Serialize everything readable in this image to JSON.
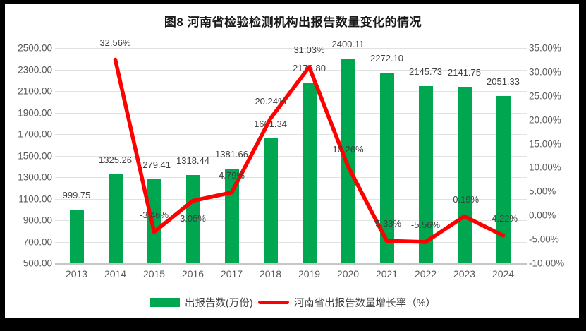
{
  "title": "图8  河南省检验检测机构出报告数量变化的情况",
  "chart_data": {
    "type": "combo (bar + line, dual axis)",
    "categories": [
      "2013",
      "2014",
      "2015",
      "2016",
      "2017",
      "2018",
      "2019",
      "2020",
      "2021",
      "2022",
      "2023",
      "2024"
    ],
    "series": [
      {
        "name": "出报告数(万份)",
        "type": "bar",
        "axis": "left",
        "color": "#00a750",
        "values": [
          999.75,
          1325.26,
          1279.41,
          1318.44,
          1381.66,
          1661.34,
          2176.8,
          2400.11,
          2272.1,
          2145.73,
          2141.75,
          2051.33
        ],
        "labels": [
          "999.75",
          "1325.26",
          "1279.41",
          "1318.44",
          "1381.66",
          "1661.34",
          "2176.80",
          "2400.11",
          "2272.10",
          "2145.73",
          "2141.75",
          "2051.33"
        ]
      },
      {
        "name": "河南省出报告数量增长率（%）",
        "type": "line",
        "axis": "right",
        "color": "#fe0000",
        "values": [
          null,
          32.56,
          -3.46,
          3.05,
          4.79,
          20.24,
          31.03,
          10.26,
          -5.33,
          -5.56,
          -0.19,
          -4.22
        ],
        "labels": [
          "",
          "32.56%",
          "-3.46%",
          "3.05%",
          "4.79%",
          "20.24%",
          "31.03%",
          "10.26%",
          "-5.33%",
          "-5.56%",
          "-0.19%",
          "-4.22%"
        ]
      }
    ],
    "left_axis": {
      "min": 500,
      "max": 2500,
      "step": 200,
      "tick_labels": [
        "2500.00",
        "2300.00",
        "2100.00",
        "1900.00",
        "1700.00",
        "1500.00",
        "1300.00",
        "1100.00",
        "900.00",
        "700.00",
        "500.00"
      ]
    },
    "right_axis": {
      "min": -10,
      "max": 35,
      "step": 5,
      "tick_labels": [
        "35.00%",
        "30.00%",
        "25.00%",
        "20.00%",
        "15.00%",
        "10.00%",
        "5.00%",
        "0.00%",
        "-5.00%",
        "-10.00%"
      ]
    },
    "grid": true,
    "legend_position": "bottom"
  },
  "colors": {
    "bar": "#00a750",
    "line": "#fe0000",
    "grid": "#e2e2e2",
    "axis_line": "#c6c6c6",
    "tick_label": "#595959",
    "data_label": "#404040",
    "frame": "#000000"
  }
}
